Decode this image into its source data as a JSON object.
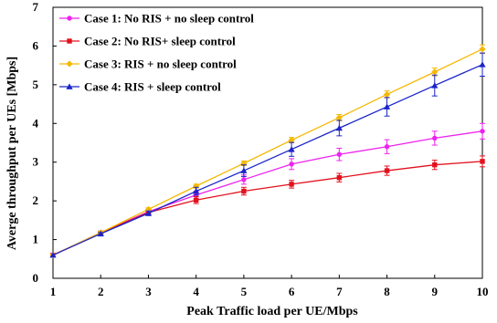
{
  "chart_data": {
    "type": "line",
    "xlabel": "Peak Traffic load per UE/Mbps",
    "ylabel": "Averge throughput per UEs [Mbps]",
    "xlim": [
      1,
      10
    ],
    "ylim": [
      0,
      7
    ],
    "x_ticks": [
      "1",
      "2",
      "3",
      "4",
      "5",
      "6",
      "7",
      "8",
      "9",
      "10"
    ],
    "y_ticks": [
      "0",
      "1",
      "2",
      "3",
      "4",
      "5",
      "6",
      "7"
    ],
    "grid": false,
    "legend_position": "top-left",
    "x": [
      1,
      2,
      3,
      4,
      5,
      6,
      7,
      8,
      9,
      10
    ],
    "series": [
      {
        "name": "Case 1: No RIS + no sleep control",
        "color": "#ee22ee",
        "marker": "circle",
        "values": [
          0.6,
          1.18,
          1.72,
          2.15,
          2.55,
          2.95,
          3.2,
          3.4,
          3.62,
          3.8
        ],
        "errors": [
          0,
          0.03,
          0.05,
          0.1,
          0.12,
          0.14,
          0.16,
          0.18,
          0.18,
          0.2
        ]
      },
      {
        "name": "Case 2: No RIS+ sleep control",
        "color": "#e3101d",
        "marker": "square",
        "values": [
          0.6,
          1.17,
          1.7,
          2.02,
          2.25,
          2.43,
          2.6,
          2.78,
          2.93,
          3.02
        ],
        "errors": [
          0,
          0.03,
          0.05,
          0.09,
          0.1,
          0.1,
          0.11,
          0.12,
          0.12,
          0.14
        ]
      },
      {
        "name": "Case 3: RIS + no sleep control",
        "color": "#f5b800",
        "marker": "diamond",
        "values": [
          0.6,
          1.18,
          1.78,
          2.38,
          2.97,
          3.57,
          4.15,
          4.75,
          5.33,
          5.92
        ],
        "errors": [
          0,
          0.03,
          0.04,
          0.05,
          0.06,
          0.07,
          0.08,
          0.09,
          0.1,
          0.11
        ]
      },
      {
        "name": "Case 4: RIS + sleep control",
        "color": "#1a24c8",
        "marker": "triangle",
        "values": [
          0.6,
          1.15,
          1.68,
          2.25,
          2.78,
          3.33,
          3.88,
          4.43,
          4.98,
          5.52
        ],
        "errors": [
          0,
          0.03,
          0.06,
          0.1,
          0.15,
          0.18,
          0.2,
          0.24,
          0.27,
          0.3
        ]
      }
    ]
  }
}
